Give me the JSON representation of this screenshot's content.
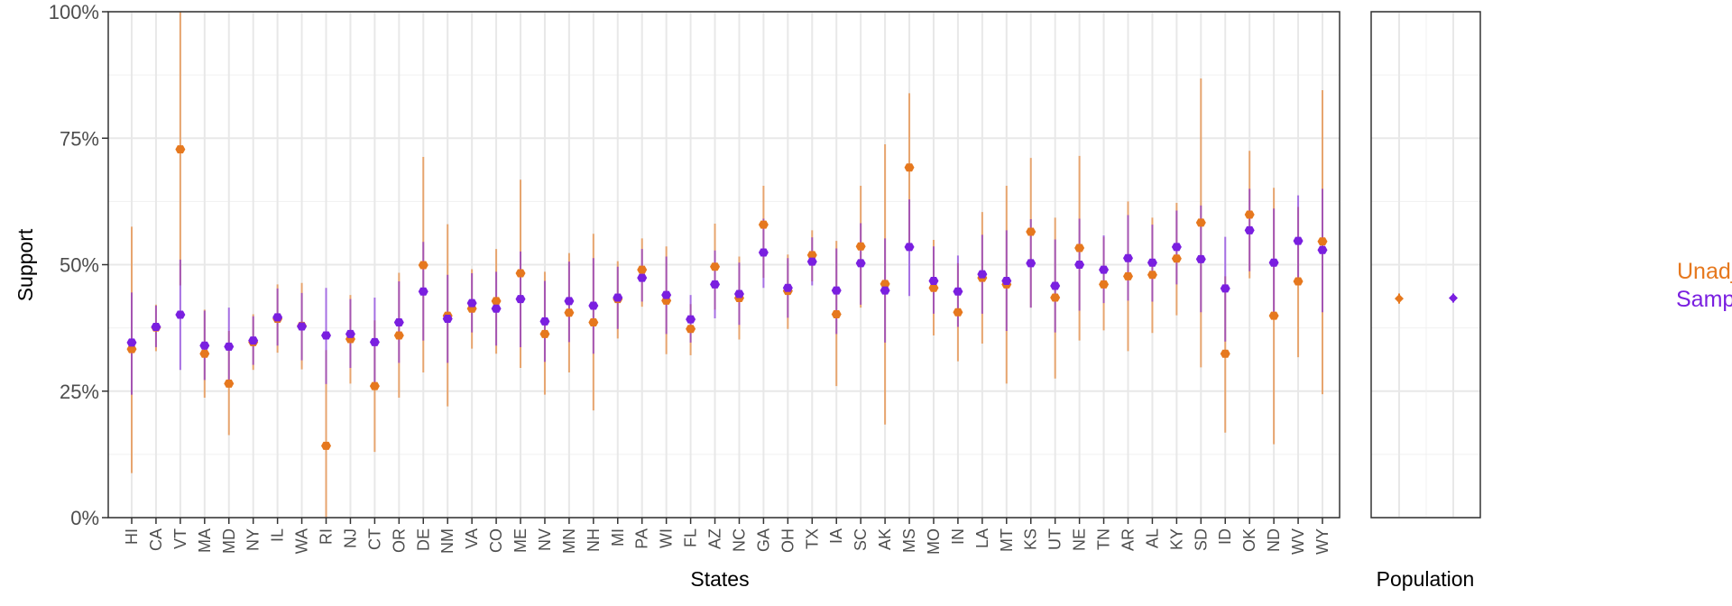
{
  "chart_data": {
    "type": "scatter",
    "title": "",
    "xlabel": "States",
    "ylabel": "Support",
    "ylim": [
      0,
      100
    ],
    "yticks": [
      "0%",
      "25%",
      "50%",
      "75%",
      "100%"
    ],
    "ytick_values": [
      0,
      25,
      50,
      75,
      100
    ],
    "grid": true,
    "legend_position": "right",
    "categories": [
      "HI",
      "CA",
      "VT",
      "MA",
      "MD",
      "NY",
      "IL",
      "WA",
      "RI",
      "NJ",
      "CT",
      "OR",
      "DE",
      "NM",
      "VA",
      "CO",
      "ME",
      "NV",
      "MN",
      "NH",
      "MI",
      "PA",
      "WI",
      "FL",
      "AZ",
      "NC",
      "GA",
      "OH",
      "TX",
      "IA",
      "SC",
      "AK",
      "MS",
      "MO",
      "IN",
      "LA",
      "MT",
      "KS",
      "UT",
      "NE",
      "TN",
      "AR",
      "AL",
      "KY",
      "SD",
      "ID",
      "OK",
      "ND",
      "WV",
      "WY"
    ],
    "series": [
      {
        "name": "Unadjusted Sample",
        "color": "#E6781E",
        "values": [
          33.3,
          37.6,
          72.8,
          32.4,
          26.5,
          34.7,
          39.3,
          37.9,
          14.2,
          35.3,
          26.0,
          36.0,
          49.9,
          39.9,
          41.3,
          42.8,
          48.3,
          36.3,
          40.5,
          38.6,
          43.2,
          49.0,
          42.9,
          37.3,
          49.6,
          43.4,
          57.9,
          44.8,
          51.9,
          40.2,
          53.6,
          46.2,
          69.2,
          45.4,
          40.6,
          47.4,
          46.1,
          56.5,
          43.5,
          53.3,
          46.1,
          47.7,
          48.0,
          51.2,
          58.3,
          32.4,
          59.9,
          39.9,
          46.7,
          54.6
        ],
        "lower": [
          8.8,
          32.9,
          45.9,
          23.7,
          16.3,
          29.2,
          32.6,
          29.3,
          0,
          26.5,
          13.0,
          23.7,
          28.7,
          22.0,
          33.4,
          32.4,
          29.6,
          24.3,
          28.7,
          21.2,
          35.4,
          41.7,
          32.3,
          32.1,
          41.1,
          35.2,
          47.4,
          37.3,
          46.7,
          26.0,
          41.5,
          18.4,
          52.8,
          36.0,
          30.9,
          34.4,
          26.5,
          41.5,
          27.5,
          35.0,
          37.0,
          32.9,
          36.5,
          40.0,
          29.7,
          16.8,
          47.3,
          14.5,
          31.7,
          24.4
        ],
        "upper": [
          57.5,
          42.1,
          100,
          41.1,
          36.9,
          40.2,
          46.1,
          46.4,
          33.1,
          44.0,
          39.0,
          48.4,
          71.3,
          58.0,
          49.1,
          53.1,
          66.8,
          48.6,
          52.3,
          56.1,
          50.7,
          55.2,
          53.6,
          42.2,
          58.1,
          51.6,
          65.6,
          52.0,
          56.8,
          54.7,
          65.6,
          73.8,
          83.9,
          54.9,
          50.3,
          60.4,
          65.6,
          71.1,
          59.3,
          71.5,
          55.5,
          62.5,
          59.3,
          62.2,
          86.8,
          47.7,
          72.5,
          65.2,
          61.4,
          84.5
        ]
      },
      {
        "name": "Sample with MRP",
        "color": "#7A1FE0",
        "values": [
          34.6,
          37.7,
          40.1,
          34.0,
          33.8,
          35.0,
          39.6,
          37.8,
          36.0,
          36.3,
          34.7,
          38.6,
          44.7,
          39.3,
          42.4,
          41.3,
          43.2,
          38.8,
          42.8,
          41.9,
          43.5,
          47.4,
          44.0,
          39.2,
          46.1,
          44.2,
          52.4,
          45.4,
          50.6,
          44.9,
          50.3,
          44.9,
          53.5,
          46.8,
          44.7,
          48.1,
          46.8,
          50.3,
          45.8,
          50.0,
          49.0,
          51.3,
          50.4,
          53.5,
          51.1,
          45.3,
          56.8,
          50.4,
          54.7,
          52.9
        ],
        "lower": [
          24.3,
          33.7,
          29.2,
          27.2,
          26.8,
          30.2,
          34.0,
          31.1,
          26.4,
          29.6,
          26.0,
          30.6,
          35.0,
          30.6,
          36.6,
          34.0,
          33.7,
          30.8,
          34.7,
          32.4,
          37.3,
          42.7,
          36.3,
          34.6,
          39.4,
          38.1,
          45.4,
          39.5,
          45.9,
          36.3,
          42.1,
          34.6,
          43.8,
          40.3,
          37.7,
          40.3,
          36.9,
          41.5,
          36.6,
          40.9,
          42.4,
          42.9,
          42.7,
          46.1,
          40.6,
          34.8,
          48.7,
          39.7,
          46.1,
          40.6
        ],
        "upper": [
          44.5,
          41.9,
          51.0,
          40.9,
          41.5,
          39.8,
          45.3,
          44.4,
          45.4,
          43.2,
          43.5,
          46.7,
          54.5,
          48.0,
          48.3,
          48.6,
          52.6,
          46.8,
          50.6,
          51.3,
          49.6,
          53.1,
          51.6,
          44.0,
          52.8,
          50.4,
          59.1,
          51.3,
          55.4,
          53.2,
          58.2,
          55.2,
          62.9,
          53.6,
          51.8,
          55.9,
          56.8,
          59.0,
          55.0,
          59.1,
          55.8,
          59.8,
          57.9,
          60.7,
          61.7,
          55.5,
          65.0,
          61.1,
          63.7,
          65.0
        ]
      }
    ],
    "population_panel": {
      "xlabel": "Population",
      "series": [
        {
          "name": "Unadjusted Sample",
          "value": 43.3,
          "lower": 42.3,
          "upper": 44.3
        },
        {
          "name": "Sample with MRP",
          "value": 43.4,
          "lower": 42.5,
          "upper": 44.3
        }
      ]
    }
  }
}
